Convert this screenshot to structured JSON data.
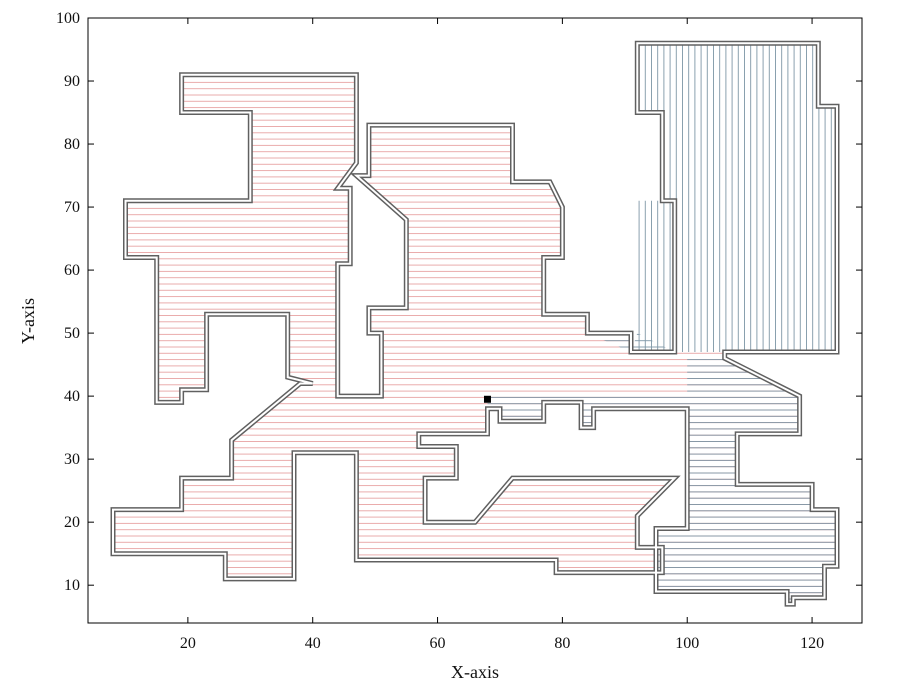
{
  "chart_data": {
    "type": "area",
    "title": "",
    "xlabel": "X-axis",
    "ylabel": "Y-axis",
    "xlim": [
      4,
      128
    ],
    "ylim": [
      4,
      100
    ],
    "x_ticks": [
      20,
      40,
      60,
      80,
      100,
      120
    ],
    "y_ticks": [
      10,
      20,
      30,
      40,
      50,
      60,
      70,
      80,
      90,
      100
    ],
    "grid": false,
    "colors": {
      "outline": "#606060",
      "red_hatch": "#e8a3a3",
      "blue_hatch": "#7d96a6",
      "marker": "#000000"
    },
    "regions": [
      {
        "fill": "red",
        "hatch": "horizontal",
        "points": [
          [
            19,
            91
          ],
          [
            47,
            91
          ],
          [
            47,
            77
          ],
          [
            44,
            73
          ],
          [
            46,
            73
          ],
          [
            46,
            61
          ],
          [
            44,
            61
          ],
          [
            44,
            40
          ],
          [
            51,
            40
          ],
          [
            51,
            50
          ],
          [
            49,
            50
          ],
          [
            49,
            54
          ],
          [
            55,
            54
          ],
          [
            55,
            68
          ],
          [
            47,
            75
          ],
          [
            49,
            75
          ],
          [
            49,
            83
          ],
          [
            72,
            83
          ],
          [
            72,
            74
          ],
          [
            78,
            74
          ],
          [
            80,
            70
          ],
          [
            80,
            62
          ],
          [
            77,
            62
          ],
          [
            77,
            53
          ],
          [
            84,
            53
          ],
          [
            84,
            50
          ],
          [
            91,
            50
          ],
          [
            91,
            46
          ],
          [
            98,
            46
          ],
          [
            98,
            47
          ],
          [
            106,
            47
          ],
          [
            106,
            46
          ],
          [
            118,
            40
          ],
          [
            118,
            34
          ],
          [
            108,
            34
          ],
          [
            108,
            26
          ],
          [
            120,
            26
          ],
          [
            120,
            22
          ],
          [
            124,
            22
          ],
          [
            124,
            13
          ],
          [
            122,
            13
          ],
          [
            122,
            8
          ],
          [
            117,
            8
          ],
          [
            117,
            7
          ],
          [
            116,
            7
          ],
          [
            116,
            9
          ],
          [
            95,
            9
          ],
          [
            95,
            19
          ],
          [
            100,
            19
          ],
          [
            100,
            38
          ],
          [
            85,
            38
          ],
          [
            85,
            35
          ],
          [
            83,
            35
          ],
          [
            83,
            39
          ],
          [
            77,
            39
          ],
          [
            77,
            36
          ],
          [
            70,
            36
          ],
          [
            70,
            38
          ],
          [
            68,
            38
          ],
          [
            68,
            34
          ],
          [
            57,
            34
          ],
          [
            57,
            32
          ],
          [
            63,
            32
          ],
          [
            63,
            27
          ],
          [
            58,
            27
          ],
          [
            58,
            20
          ],
          [
            66,
            20
          ],
          [
            72,
            27
          ],
          [
            98,
            27
          ],
          [
            92,
            21
          ],
          [
            92,
            16
          ],
          [
            96,
            16
          ],
          [
            96,
            12
          ],
          [
            79,
            12
          ],
          [
            79,
            14
          ],
          [
            47,
            14
          ],
          [
            47,
            31
          ],
          [
            37,
            31
          ],
          [
            37,
            11
          ],
          [
            26,
            11
          ],
          [
            26,
            15
          ],
          [
            8,
            15
          ],
          [
            8,
            22
          ],
          [
            19,
            22
          ],
          [
            19,
            27
          ],
          [
            27,
            27
          ],
          [
            27,
            33
          ],
          [
            38,
            42
          ],
          [
            40,
            42
          ],
          [
            36,
            43
          ],
          [
            36,
            53
          ],
          [
            23,
            53
          ],
          [
            23,
            41
          ],
          [
            19,
            41
          ],
          [
            19,
            39
          ],
          [
            15,
            39
          ],
          [
            15,
            62
          ],
          [
            10,
            62
          ],
          [
            10,
            71
          ],
          [
            30,
            71
          ],
          [
            30,
            85
          ],
          [
            19,
            85
          ]
        ]
      },
      {
        "fill": "blue",
        "hatch": "horizontal",
        "points": [
          [
            49,
            75
          ],
          [
            49,
            83
          ],
          [
            72,
            83
          ],
          [
            72,
            74
          ],
          [
            78,
            74
          ],
          [
            80,
            70
          ],
          [
            80,
            62
          ],
          [
            77,
            62
          ],
          [
            77,
            53
          ],
          [
            84,
            53
          ],
          [
            84,
            50
          ],
          [
            91,
            50
          ],
          [
            91,
            47
          ],
          [
            98,
            47
          ],
          [
            92,
            50
          ],
          [
            91,
            47
          ],
          [
            84,
            50
          ],
          [
            84,
            53
          ],
          [
            77,
            53
          ],
          [
            77,
            62
          ],
          [
            80,
            62
          ],
          [
            80,
            70
          ],
          [
            78,
            74
          ],
          [
            72,
            74
          ],
          [
            72,
            83
          ],
          [
            49,
            83
          ]
        ]
      },
      {
        "fill": "blue",
        "hatch": "vertical",
        "points": [
          [
            92,
            47
          ],
          [
            92,
            71
          ],
          [
            96,
            71
          ],
          [
            96,
            85
          ],
          [
            92,
            85
          ],
          [
            92,
            96
          ],
          [
            121,
            96
          ],
          [
            121,
            86
          ],
          [
            124,
            86
          ],
          [
            124,
            47
          ]
        ]
      },
      {
        "fill": "blue",
        "hatch": "horizontal",
        "points": [
          [
            106,
            46
          ],
          [
            118,
            40
          ],
          [
            118,
            34
          ],
          [
            108,
            34
          ],
          [
            108,
            26
          ],
          [
            120,
            26
          ],
          [
            120,
            22
          ],
          [
            124,
            22
          ],
          [
            124,
            13
          ],
          [
            122,
            13
          ],
          [
            122,
            8
          ],
          [
            117,
            8
          ],
          [
            117,
            7
          ],
          [
            116,
            7
          ],
          [
            116,
            9
          ],
          [
            95,
            9
          ],
          [
            95,
            19
          ],
          [
            100,
            19
          ],
          [
            100,
            38
          ],
          [
            85,
            38
          ],
          [
            85,
            35
          ],
          [
            83,
            35
          ],
          [
            83,
            39
          ],
          [
            77,
            39
          ],
          [
            77,
            36
          ],
          [
            70,
            36
          ],
          [
            70,
            38
          ],
          [
            68,
            38
          ],
          [
            68,
            40
          ],
          [
            100,
            40
          ],
          [
            100,
            46
          ]
        ]
      }
    ],
    "outlines": [
      [
        [
          19,
          91
        ],
        [
          47,
          91
        ],
        [
          47,
          77
        ],
        [
          44,
          73
        ],
        [
          46,
          73
        ],
        [
          46,
          61
        ],
        [
          44,
          61
        ],
        [
          44,
          40
        ],
        [
          51,
          40
        ],
        [
          51,
          50
        ],
        [
          49,
          50
        ],
        [
          49,
          54
        ],
        [
          55,
          54
        ],
        [
          55,
          68
        ],
        [
          47,
          75
        ],
        [
          49,
          75
        ],
        [
          49,
          83
        ],
        [
          72,
          83
        ],
        [
          72,
          74
        ],
        [
          78,
          74
        ],
        [
          80,
          70
        ],
        [
          80,
          62
        ],
        [
          77,
          62
        ],
        [
          77,
          53
        ],
        [
          84,
          53
        ],
        [
          84,
          50
        ],
        [
          91,
          50
        ],
        [
          91,
          47
        ],
        [
          98,
          47
        ],
        [
          98,
          71
        ],
        [
          96,
          71
        ],
        [
          96,
          85
        ],
        [
          92,
          85
        ],
        [
          92,
          96
        ],
        [
          121,
          96
        ],
        [
          121,
          86
        ],
        [
          124,
          86
        ],
        [
          124,
          47
        ],
        [
          106,
          47
        ],
        [
          106,
          46
        ],
        [
          118,
          40
        ],
        [
          118,
          34
        ],
        [
          108,
          34
        ],
        [
          108,
          26
        ],
        [
          120,
          26
        ],
        [
          120,
          22
        ],
        [
          124,
          22
        ],
        [
          124,
          13
        ],
        [
          122,
          13
        ],
        [
          122,
          8
        ],
        [
          117,
          8
        ],
        [
          117,
          7
        ],
        [
          116,
          7
        ],
        [
          116,
          9
        ],
        [
          95,
          9
        ],
        [
          95,
          19
        ],
        [
          100,
          19
        ],
        [
          100,
          38
        ],
        [
          85,
          38
        ],
        [
          85,
          35
        ],
        [
          83,
          35
        ],
        [
          83,
          39
        ],
        [
          77,
          39
        ],
        [
          77,
          36
        ],
        [
          70,
          36
        ],
        [
          70,
          38
        ],
        [
          68,
          38
        ],
        [
          68,
          34
        ],
        [
          57,
          34
        ],
        [
          57,
          32
        ],
        [
          63,
          32
        ],
        [
          63,
          27
        ],
        [
          58,
          27
        ],
        [
          58,
          20
        ],
        [
          66,
          20
        ],
        [
          72,
          27
        ],
        [
          98,
          27
        ],
        [
          92,
          21
        ],
        [
          92,
          16
        ],
        [
          96,
          16
        ],
        [
          96,
          12
        ],
        [
          79,
          12
        ],
        [
          79,
          14
        ],
        [
          47,
          14
        ],
        [
          47,
          31
        ],
        [
          37,
          31
        ],
        [
          37,
          11
        ],
        [
          26,
          11
        ],
        [
          26,
          15
        ],
        [
          8,
          15
        ],
        [
          8,
          22
        ],
        [
          19,
          22
        ],
        [
          19,
          27
        ],
        [
          27,
          27
        ],
        [
          27,
          33
        ],
        [
          38,
          42
        ],
        [
          40,
          42
        ],
        [
          36,
          43
        ],
        [
          36,
          53
        ],
        [
          23,
          53
        ],
        [
          23,
          41
        ],
        [
          19,
          41
        ],
        [
          19,
          39
        ],
        [
          15,
          39
        ],
        [
          15,
          62
        ],
        [
          10,
          62
        ],
        [
          10,
          71
        ],
        [
          30,
          71
        ],
        [
          30,
          85
        ],
        [
          19,
          85
        ]
      ]
    ],
    "marker": {
      "x": 68,
      "y": 39.5
    }
  }
}
